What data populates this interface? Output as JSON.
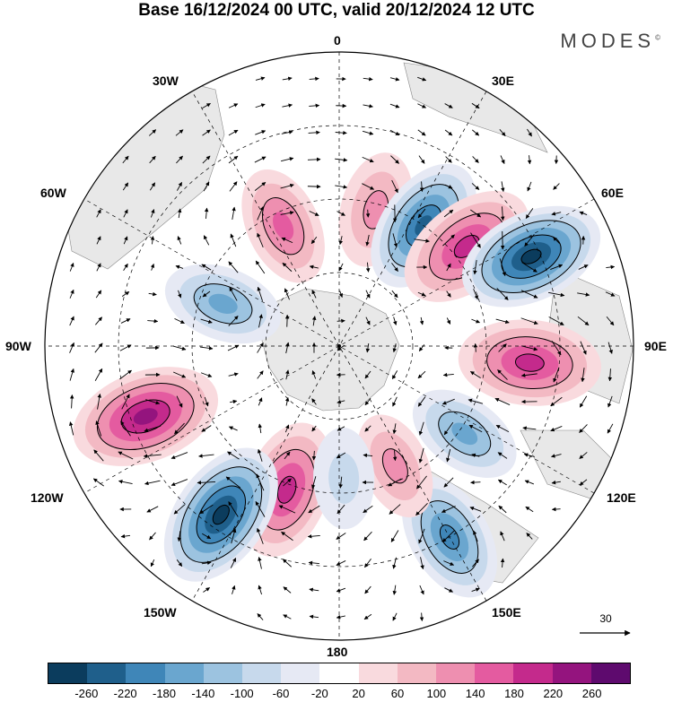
{
  "title": "Base 16/12/2024 00 UTC, valid 20/12/2024 12 UTC",
  "brand": "MODES",
  "brand_mark": "©",
  "longitude_labels": {
    "lon0": "0",
    "lon30e": "30E",
    "lon60e": "60E",
    "lon90e": "90E",
    "lon120e": "120E",
    "lon150e": "150E",
    "lon180": "180",
    "lon150w": "150W",
    "lon120w": "120W",
    "lon90w": "90W",
    "lon60w": "60W",
    "lon30w": "30W"
  },
  "reference_vector_label": "30",
  "colorbar": {
    "colors": [
      "#0b3c5d",
      "#1f5f8b",
      "#3f86b8",
      "#6aa6cf",
      "#9cc3e0",
      "#c7d9ec",
      "#e6e9f4",
      "#ffffff",
      "#f9dade",
      "#f3b9c3",
      "#ee8fb0",
      "#e45ba0",
      "#c42a8c",
      "#94147e",
      "#5e0a6e"
    ],
    "tick_labels": [
      "-260",
      "-220",
      "-180",
      "-140",
      "-100",
      "-60",
      "-20",
      "20",
      "60",
      "100",
      "140",
      "180",
      "220",
      "260"
    ]
  },
  "anomaly_centers": [
    {
      "lon_deg": 200,
      "lat_frac": 0.52,
      "sign": "positive",
      "strength": 0.85
    },
    {
      "lon_deg": 215,
      "lat_frac": 0.7,
      "sign": "negative",
      "strength": 1.0
    },
    {
      "lon_deg": 250,
      "lat_frac": 0.7,
      "sign": "positive",
      "strength": 1.0
    },
    {
      "lon_deg": 290,
      "lat_frac": 0.42,
      "sign": "negative",
      "strength": 0.6
    },
    {
      "lon_deg": 335,
      "lat_frac": 0.45,
      "sign": "positive",
      "strength": 0.6
    },
    {
      "lon_deg": 15,
      "lat_frac": 0.48,
      "sign": "positive",
      "strength": 0.55
    },
    {
      "lon_deg": 35,
      "lat_frac": 0.5,
      "sign": "negative",
      "strength": 0.85
    },
    {
      "lon_deg": 52,
      "lat_frac": 0.55,
      "sign": "positive",
      "strength": 0.9
    },
    {
      "lon_deg": 65,
      "lat_frac": 0.72,
      "sign": "negative",
      "strength": 0.95
    },
    {
      "lon_deg": 95,
      "lat_frac": 0.65,
      "sign": "positive",
      "strength": 0.9
    },
    {
      "lon_deg": 125,
      "lat_frac": 0.52,
      "sign": "negative",
      "strength": 0.55
    },
    {
      "lon_deg": 150,
      "lat_frac": 0.75,
      "sign": "negative",
      "strength": 0.75
    },
    {
      "lon_deg": 155,
      "lat_frac": 0.45,
      "sign": "positive",
      "strength": 0.45
    },
    {
      "lon_deg": 178,
      "lat_frac": 0.45,
      "sign": "negative",
      "strength": 0.35
    }
  ]
}
